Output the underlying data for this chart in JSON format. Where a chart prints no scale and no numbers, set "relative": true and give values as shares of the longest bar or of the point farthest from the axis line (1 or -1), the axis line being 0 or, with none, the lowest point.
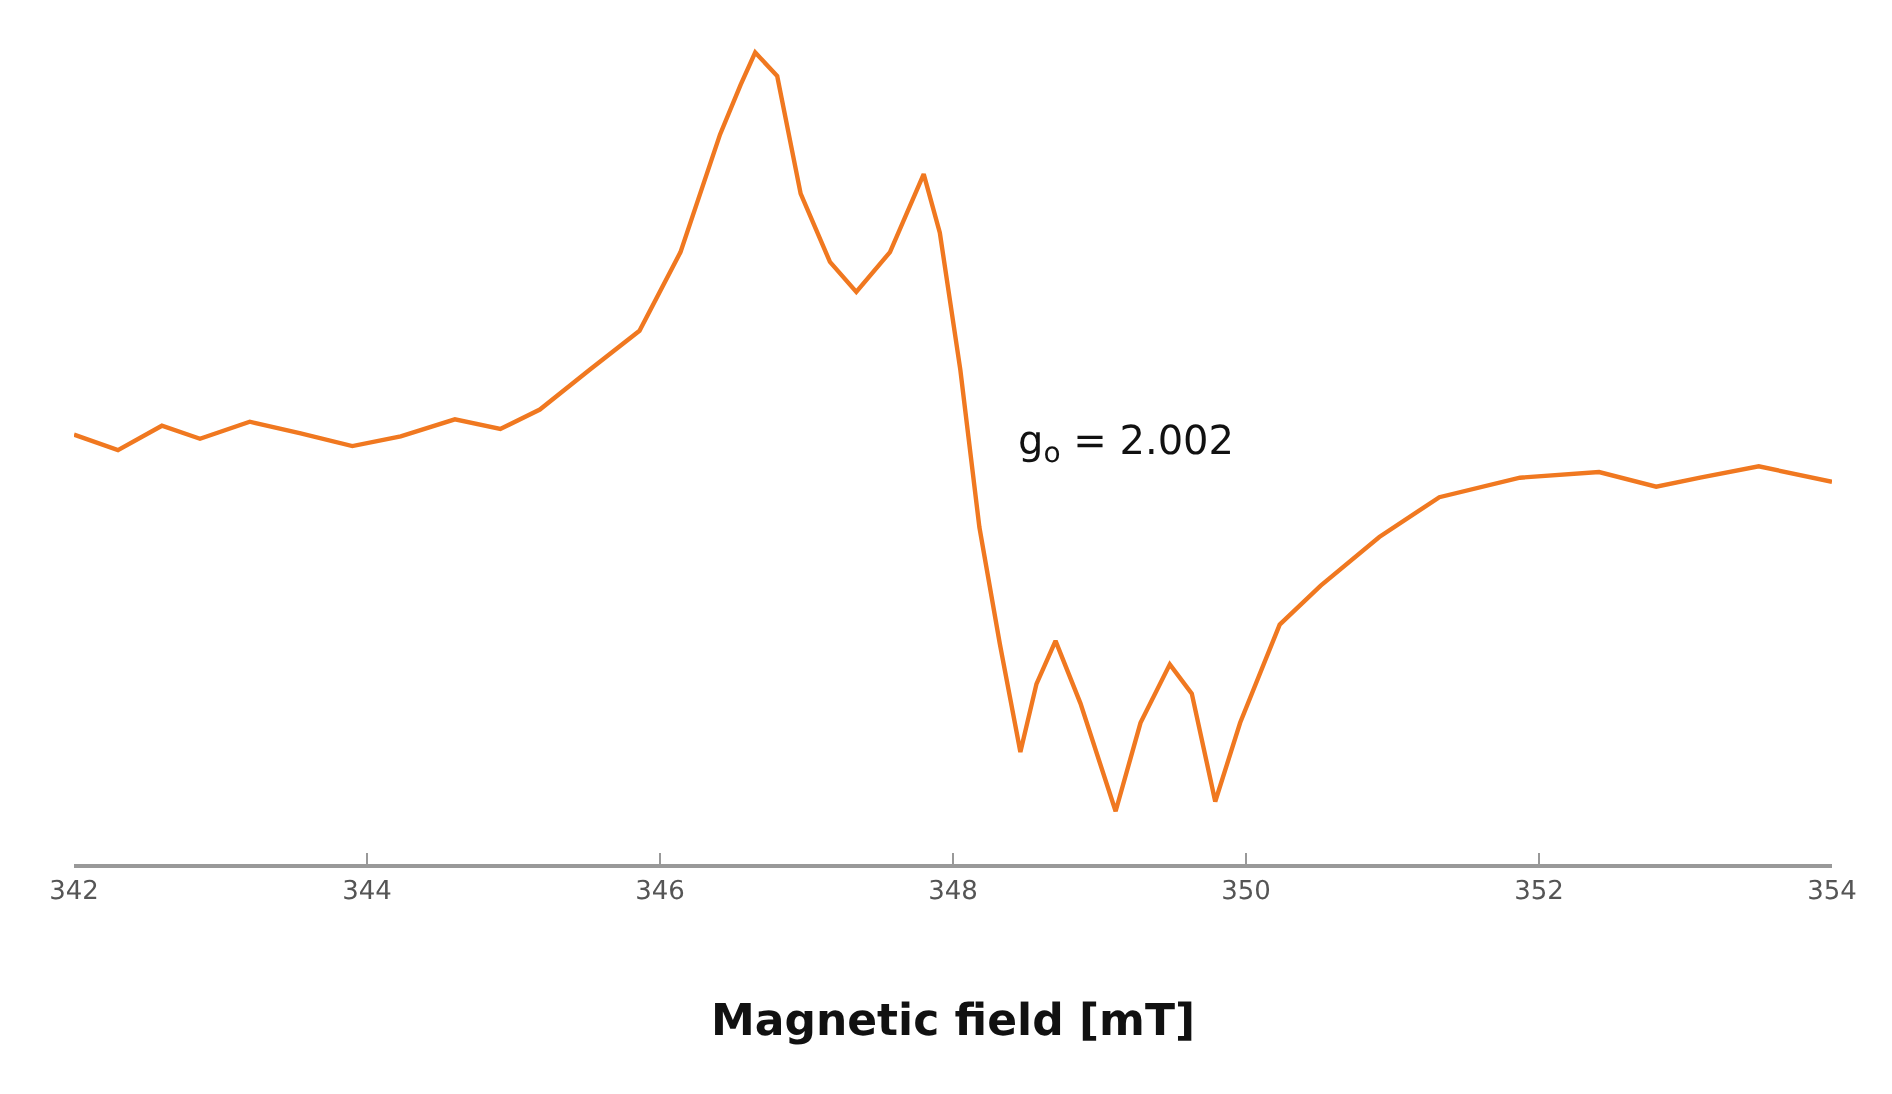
{
  "chart_data": {
    "type": "line",
    "relative": true,
    "xlabel": "Magnetic field [mT]",
    "annotations": [
      "g$_{o}$ = 2.002"
    ],
    "xlim": [
      342,
      354
    ],
    "xticks": [
      342,
      344,
      346,
      348,
      350,
      352,
      354
    ],
    "marker": "none",
    "line_style": "solid",
    "series": [
      {
        "color": "#f07820",
        "x": [
          342.0,
          342.3,
          342.6,
          342.86,
          343.2,
          343.54,
          343.9,
          344.23,
          344.6,
          344.91,
          345.18,
          345.52,
          345.86,
          346.14,
          346.41,
          346.55,
          346.65,
          346.8,
          346.96,
          347.16,
          347.34,
          347.57,
          347.8,
          347.91,
          348.05,
          348.18,
          348.32,
          348.46,
          348.57,
          348.7,
          348.87,
          349.11,
          349.28,
          349.48,
          349.63,
          349.79,
          349.96,
          350.23,
          350.51,
          350.91,
          351.32,
          351.87,
          352.41,
          352.8,
          353.1,
          353.5,
          354.0
        ],
        "values": [
          0.529,
          0.51,
          0.54,
          0.524,
          0.545,
          0.531,
          0.515,
          0.527,
          0.548,
          0.536,
          0.56,
          0.609,
          0.657,
          0.754,
          0.899,
          0.96,
          1.0,
          0.971,
          0.826,
          0.742,
          0.705,
          0.754,
          0.85,
          0.778,
          0.609,
          0.415,
          0.271,
          0.138,
          0.222,
          0.275,
          0.198,
          0.065,
          0.174,
          0.246,
          0.21,
          0.077,
          0.174,
          0.295,
          0.343,
          0.403,
          0.452,
          0.476,
          0.483,
          0.465,
          0.476,
          0.49,
          0.471
        ]
      }
    ]
  }
}
